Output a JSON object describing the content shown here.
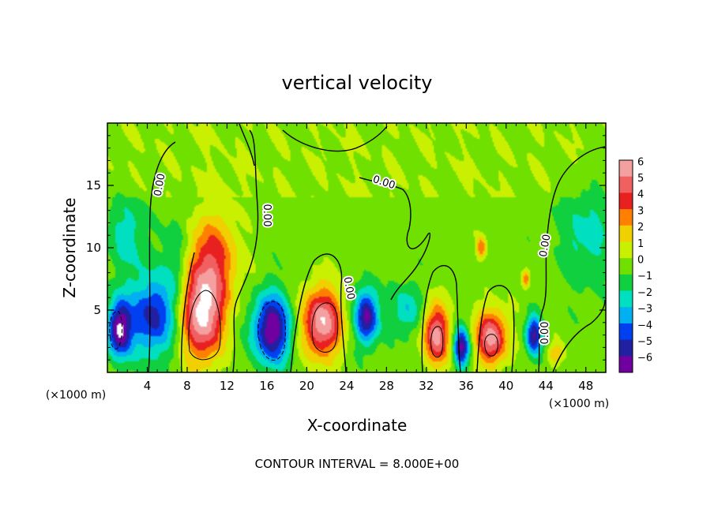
{
  "chart_data": {
    "type": "heatmap",
    "title": "vertical velocity",
    "xlabel": "X-coordinate",
    "ylabel": "Z-coordinate",
    "x_units": "(×1000 m)",
    "y_units": "(×1000 m)",
    "xlim": [
      0,
      50
    ],
    "ylim": [
      0,
      20
    ],
    "x_ticks": [
      4,
      8,
      12,
      16,
      20,
      24,
      28,
      32,
      36,
      40,
      44,
      48
    ],
    "y_ticks": [
      5,
      10,
      15
    ],
    "colorbar": {
      "ticks": [
        6,
        5,
        4,
        3,
        2,
        1,
        0,
        -1,
        -2,
        -3,
        -4,
        -5,
        -6
      ],
      "colors": [
        "#f4a0a0",
        "#f06060",
        "#e82020",
        "#ff8000",
        "#f0d000",
        "#c8f000",
        "#70e000",
        "#10d040",
        "#00e0c0",
        "#00b0f0",
        "#0040f0",
        "#2020a0",
        "#7000a0"
      ]
    },
    "contour_labels": [
      "0.00",
      "0.00",
      "0.00",
      "0.00",
      "0.00",
      "0.00"
    ],
    "contour_interval_text": "CONTOUR INTERVAL = 8.000E+00",
    "features": [
      {
        "kind": "updraft",
        "x": 9.5,
        "z": 4.5,
        "w": 6.5,
        "rx": 2.1,
        "rz": 3.6
      },
      {
        "kind": "updraft",
        "x": 10.5,
        "z": 9.0,
        "w": 3.8,
        "rx": 2.6,
        "rz": 3.8
      },
      {
        "kind": "updraft",
        "x": 21.5,
        "z": 4.0,
        "w": 6.5,
        "rx": 2.0,
        "rz": 2.8
      },
      {
        "kind": "updraft",
        "x": 33.0,
        "z": 3.0,
        "w": 6.0,
        "rx": 1.3,
        "rz": 2.4
      },
      {
        "kind": "updraft",
        "x": 38.5,
        "z": 2.8,
        "w": 6.0,
        "rx": 1.6,
        "rz": 2.2
      },
      {
        "kind": "updraft",
        "x": 37.5,
        "z": 10.0,
        "w": 3.5,
        "rx": 0.5,
        "rz": 0.9
      },
      {
        "kind": "updraft",
        "x": 42.0,
        "z": 7.5,
        "w": 3.5,
        "rx": 0.4,
        "rz": 0.7
      },
      {
        "kind": "updraft",
        "x": 45.0,
        "z": 1.5,
        "w": 2.5,
        "rx": 0.8,
        "rz": 0.8
      },
      {
        "kind": "downdraft",
        "x": 1.2,
        "z": 3.5,
        "w": -6.5,
        "rx": 1.2,
        "rz": 2.3
      },
      {
        "kind": "downdraft",
        "x": 4.5,
        "z": 4.5,
        "w": -5.0,
        "rx": 2.3,
        "rz": 3.2
      },
      {
        "kind": "downdraft",
        "x": 16.5,
        "z": 3.5,
        "w": -6.5,
        "rx": 1.9,
        "rz": 2.8
      },
      {
        "kind": "downdraft",
        "x": 26.0,
        "z": 4.5,
        "w": -6.0,
        "rx": 1.2,
        "rz": 2.2
      },
      {
        "kind": "downdraft",
        "x": 35.5,
        "z": 2.0,
        "w": -6.0,
        "rx": 0.8,
        "rz": 1.6
      },
      {
        "kind": "downdraft",
        "x": 42.8,
        "z": 3.0,
        "w": -5.5,
        "rx": 0.8,
        "rz": 1.6
      },
      {
        "kind": "downdraft",
        "x": 30.0,
        "z": 5.0,
        "w": -2.5,
        "rx": 1.5,
        "rz": 2.0
      },
      {
        "kind": "downdraft",
        "x": 7.0,
        "z": 9.0,
        "w": -2.0,
        "rx": 1.2,
        "rz": 3.5
      },
      {
        "kind": "downdraft",
        "x": 48.0,
        "z": 11.0,
        "w": -2.0,
        "rx": 2.5,
        "rz": 4.0
      },
      {
        "kind": "downdraft",
        "x": 2.0,
        "z": 11.0,
        "w": -2.0,
        "rx": 2.0,
        "rz": 3.0
      }
    ]
  }
}
